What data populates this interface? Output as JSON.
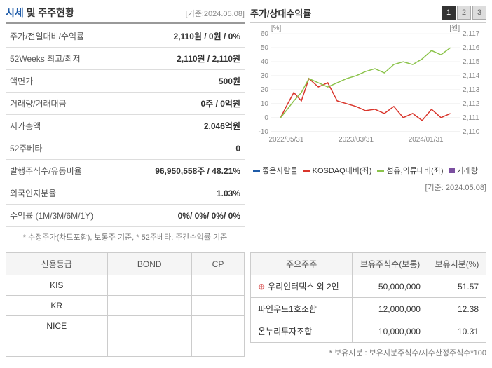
{
  "header": {
    "title_accent": "시세",
    "title_rest": " 및 주주현황",
    "date": "[기준:2024.05.08]"
  },
  "info_rows": [
    {
      "label": "주가/전일대비/수익률",
      "value": "2,110원 / 0원 / 0%"
    },
    {
      "label": "52Weeks 최고/최저",
      "value": "2,110원 / 2,110원"
    },
    {
      "label": "액면가",
      "value": "500원"
    },
    {
      "label": "거래량/거래대금",
      "value": "0주 / 0억원"
    },
    {
      "label": "시가총액",
      "value": "2,046억원"
    },
    {
      "label": "52주베타",
      "value": "0"
    },
    {
      "label": "발행주식수/유동비율",
      "value": "96,950,558주 / 48.21%"
    },
    {
      "label": "외국인지분율",
      "value": "1.03%"
    },
    {
      "label": "수익률 (1M/3M/6M/1Y)",
      "value": "0%/ 0%/ 0%/ 0%"
    }
  ],
  "footnote_left": "* 수정주가(차트포함), 보통주 기준, * 52주베타: 주간수익률 기준",
  "chart": {
    "title": "주가/상대수익률",
    "tabs": [
      "1",
      "2",
      "3"
    ],
    "active_tab": 0,
    "left_axis_label": "[%]",
    "right_axis_label": "[원]",
    "left_ticks": [
      -10,
      0,
      10,
      20,
      30,
      40,
      50,
      60
    ],
    "right_ticks": [
      2110,
      2111,
      2112,
      2113,
      2114,
      2115,
      2116,
      2117
    ],
    "x_labels": [
      "2022/05/31",
      "2023/03/31",
      "2024/01/31"
    ],
    "x_positions": [
      0.08,
      0.45,
      0.82
    ],
    "series": [
      {
        "name": "좋은사람들",
        "color": "#1e5ba8",
        "points": []
      },
      {
        "name": "KOSDAQ대비(좌)",
        "color": "#d9352b",
        "points": [
          [
            0.05,
            0
          ],
          [
            0.08,
            8
          ],
          [
            0.12,
            18
          ],
          [
            0.16,
            12
          ],
          [
            0.2,
            28
          ],
          [
            0.25,
            22
          ],
          [
            0.3,
            25
          ],
          [
            0.35,
            12
          ],
          [
            0.4,
            10
          ],
          [
            0.45,
            8
          ],
          [
            0.5,
            5
          ],
          [
            0.55,
            6
          ],
          [
            0.6,
            3
          ],
          [
            0.65,
            8
          ],
          [
            0.7,
            0
          ],
          [
            0.75,
            3
          ],
          [
            0.8,
            -2
          ],
          [
            0.85,
            6
          ],
          [
            0.9,
            0
          ],
          [
            0.95,
            3
          ]
        ]
      },
      {
        "name": "섬유,의류대비(좌)",
        "color": "#8bc34a",
        "points": [
          [
            0.05,
            0
          ],
          [
            0.08,
            5
          ],
          [
            0.12,
            12
          ],
          [
            0.16,
            18
          ],
          [
            0.2,
            28
          ],
          [
            0.25,
            25
          ],
          [
            0.3,
            22
          ],
          [
            0.35,
            25
          ],
          [
            0.4,
            28
          ],
          [
            0.45,
            30
          ],
          [
            0.5,
            33
          ],
          [
            0.55,
            35
          ],
          [
            0.6,
            32
          ],
          [
            0.65,
            38
          ],
          [
            0.7,
            40
          ],
          [
            0.75,
            38
          ],
          [
            0.8,
            42
          ],
          [
            0.85,
            48
          ],
          [
            0.9,
            45
          ],
          [
            0.95,
            50
          ]
        ]
      },
      {
        "name": "거래량",
        "color": "#7b4fa0",
        "points": [],
        "is_box": true
      }
    ],
    "date_note": "[기준: 2024.05.08]"
  },
  "rating": {
    "headers": [
      "신용등급",
      "BOND",
      "CP"
    ],
    "rows": [
      {
        "label": "KIS",
        "bond": "",
        "cp": ""
      },
      {
        "label": "KR",
        "bond": "",
        "cp": ""
      },
      {
        "label": "NICE",
        "bond": "",
        "cp": ""
      }
    ]
  },
  "holders": {
    "headers": [
      "주요주주",
      "보유주식수(보통)",
      "보유지분(%)"
    ],
    "rows": [
      {
        "name": "우리인터텍스 외 2인",
        "shares": "50,000,000",
        "pct": "51.57",
        "expandable": true
      },
      {
        "name": "파인우드1호조합",
        "shares": "12,000,000",
        "pct": "12.38",
        "expandable": false
      },
      {
        "name": "온누리투자조합",
        "shares": "10,000,000",
        "pct": "10.31",
        "expandable": false
      }
    ],
    "footnote": "* 보유지분 : 보유지분주식수/지수산정주식수*100"
  }
}
